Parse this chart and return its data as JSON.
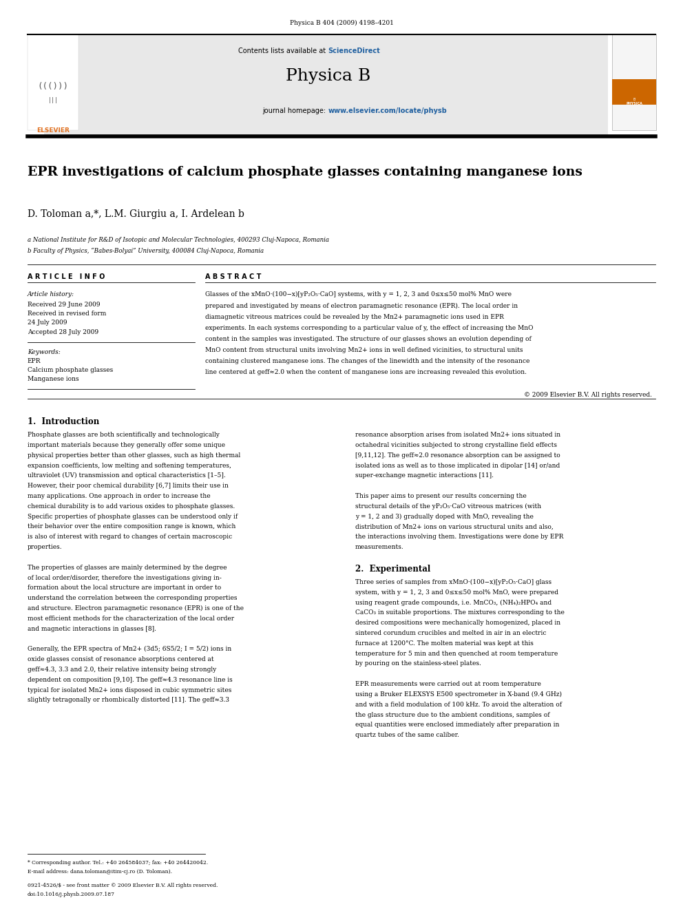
{
  "page_width": 9.92,
  "page_height": 13.23,
  "bg_color": "#ffffff",
  "journal_ref": "Physica B 404 (2009) 4198–4201",
  "header_bg": "#e8e8e8",
  "contents_text": "Contents lists available at",
  "sciencedirect_text": "ScienceDirect",
  "sciencedirect_color": "#2060a0",
  "journal_name": "Physica B",
  "homepage_label": "journal homepage:",
  "homepage_url": "www.elsevier.com/locate/physb",
  "homepage_color": "#2060a0",
  "title": "EPR investigations of calcium phosphate glasses containing manganese ions",
  "authors": "D. Toloman a,*, L.M. Giurgiu a, I. Ardelean b",
  "affil_a": "a National Institute for R&D of Isotopic and Molecular Technologies, 400293 Cluj-Napoca, Romania",
  "affil_b": "b Faculty of Physics, “Babes-Bolyai” University, 400084 Cluj-Napoca, Romania",
  "article_info_title": "A R T I C L E   I N F O",
  "abstract_title": "A B S T R A C T",
  "article_history_label": "Article history:",
  "received1": "Received 29 June 2009",
  "received2": "Received in revised form",
  "received2b": "24 July 2009",
  "accepted": "Accepted 28 July 2009",
  "keywords_label": "Keywords:",
  "keyword1": "EPR",
  "keyword2": "Calcium phosphate glasses",
  "keyword3": "Manganese ions",
  "copyright": "© 2009 Elsevier B.V. All rights reserved.",
  "section1_title": "1.  Introduction",
  "section2_title": "2.  Experimental",
  "footnote_star": "* Corresponding author. Tel.: +40 264584037; fax: +40 264420042.",
  "footnote_email": "E-mail address: dana.toloman@itim-cj.ro (D. Toloman).",
  "issn_line": "0921-4526/$ - see front matter © 2009 Elsevier B.V. All rights reserved.",
  "doi_line": "doi:10.1016/j.physb.2009.07.187",
  "elsevier_color": "#e07020",
  "elsevier_text": "ELSEVIER",
  "abstract_lines": [
    "Glasses of the xMnO·(100−x)[yP₂O₅·CaO] systems, with y = 1, 2, 3 and 0≤x≤50 mol% MnO were",
    "prepared and investigated by means of electron paramagnetic resonance (EPR). The local order in",
    "diamagnetic vitreous matrices could be revealed by the Mn2+ paramagnetic ions used in EPR",
    "experiments. In each systems corresponding to a particular value of y, the effect of increasing the MnO",
    "content in the samples was investigated. The structure of our glasses shows an evolution depending of",
    "MnO content from structural units involving Mn2+ ions in well defined vicinities, to structural units",
    "containing clustered manganese ions. The changes of the linewidth and the intensity of the resonance",
    "line centered at geff≈2.0 when the content of manganese ions are increasing revealed this evolution."
  ],
  "intro_col1_lines": [
    "Phosphate glasses are both scientifically and technologically",
    "important materials because they generally offer some unique",
    "physical properties better than other glasses, such as high thermal",
    "expansion coefficients, low melting and softening temperatures,",
    "ultraviolet (UV) transmission and optical characteristics [1–5].",
    "However, their poor chemical durability [6,7] limits their use in",
    "many applications. One approach in order to increase the",
    "chemical durability is to add various oxides to phosphate glasses.",
    "Specific properties of phosphate glasses can be understood only if",
    "their behavior over the entire composition range is known, which",
    "is also of interest with regard to changes of certain macroscopic",
    "properties.",
    "",
    "The properties of glasses are mainly determined by the degree",
    "of local order/disorder, therefore the investigations giving in-",
    "formation about the local structure are important in order to",
    "understand the correlation between the corresponding properties",
    "and structure. Electron paramagnetic resonance (EPR) is one of the",
    "most efficient methods for the characterization of the local order",
    "and magnetic interactions in glasses [8].",
    "",
    "Generally, the EPR spectra of Mn2+ (3d5; 6S5/2; I = 5/2) ions in",
    "oxide glasses consist of resonance absorptions centered at",
    "geff≈4.3, 3.3 and 2.0, their relative intensity being strongly",
    "dependent on composition [9,10]. The geff≈4.3 resonance line is",
    "typical for isolated Mn2+ ions disposed in cubic symmetric sites",
    "slightly tetragonally or rhombically distorted [11]. The geff≈3.3"
  ],
  "intro_col2_lines": [
    "resonance absorption arises from isolated Mn2+ ions situated in",
    "octahedral vicinities subjected to strong crystalline field effects",
    "[9,11,12]. The geff≈2.0 resonance absorption can be assigned to",
    "isolated ions as well as to those implicated in dipolar [14] or/and",
    "super-exchange magnetic interactions [11].",
    "",
    "This paper aims to present our results concerning the",
    "structural details of the yP₂O₅·CaO vitreous matrices (with",
    "y = 1, 2 and 3) gradually doped with MnO, revealing the",
    "distribution of Mn2+ ions on various structural units and also,",
    "the interactions involving them. Investigations were done by EPR",
    "measurements."
  ],
  "exp_col2_lines": [
    "Three series of samples from xMnO·(100−x)[yP₂O₅·CaO] glass",
    "system, with y = 1, 2, 3 and 0≤x≤50 mol% MnO, were prepared",
    "using reagent grade compounds, i.e. MnCO₃, (NH₄)₂HPO₄ and",
    "CaCO₃ in suitable proportions. The mixtures corresponding to the",
    "desired compositions were mechanically homogenized, placed in",
    "sintered corundum crucibles and melted in air in an electric",
    "furnace at 1200°C. The molten material was kept at this",
    "temperature for 5 min and then quenched at room temperature",
    "by pouring on the stainless-steel plates.",
    "",
    "EPR measurements were carried out at room temperature",
    "using a Bruker ELEXSYS E500 spectrometer in X-band (9.4 GHz)",
    "and with a field modulation of 100 kHz. To avoid the alteration of",
    "the glass structure due to the ambient conditions, samples of",
    "equal quantities were enclosed immediately after preparation in",
    "quartz tubes of the same caliber."
  ]
}
